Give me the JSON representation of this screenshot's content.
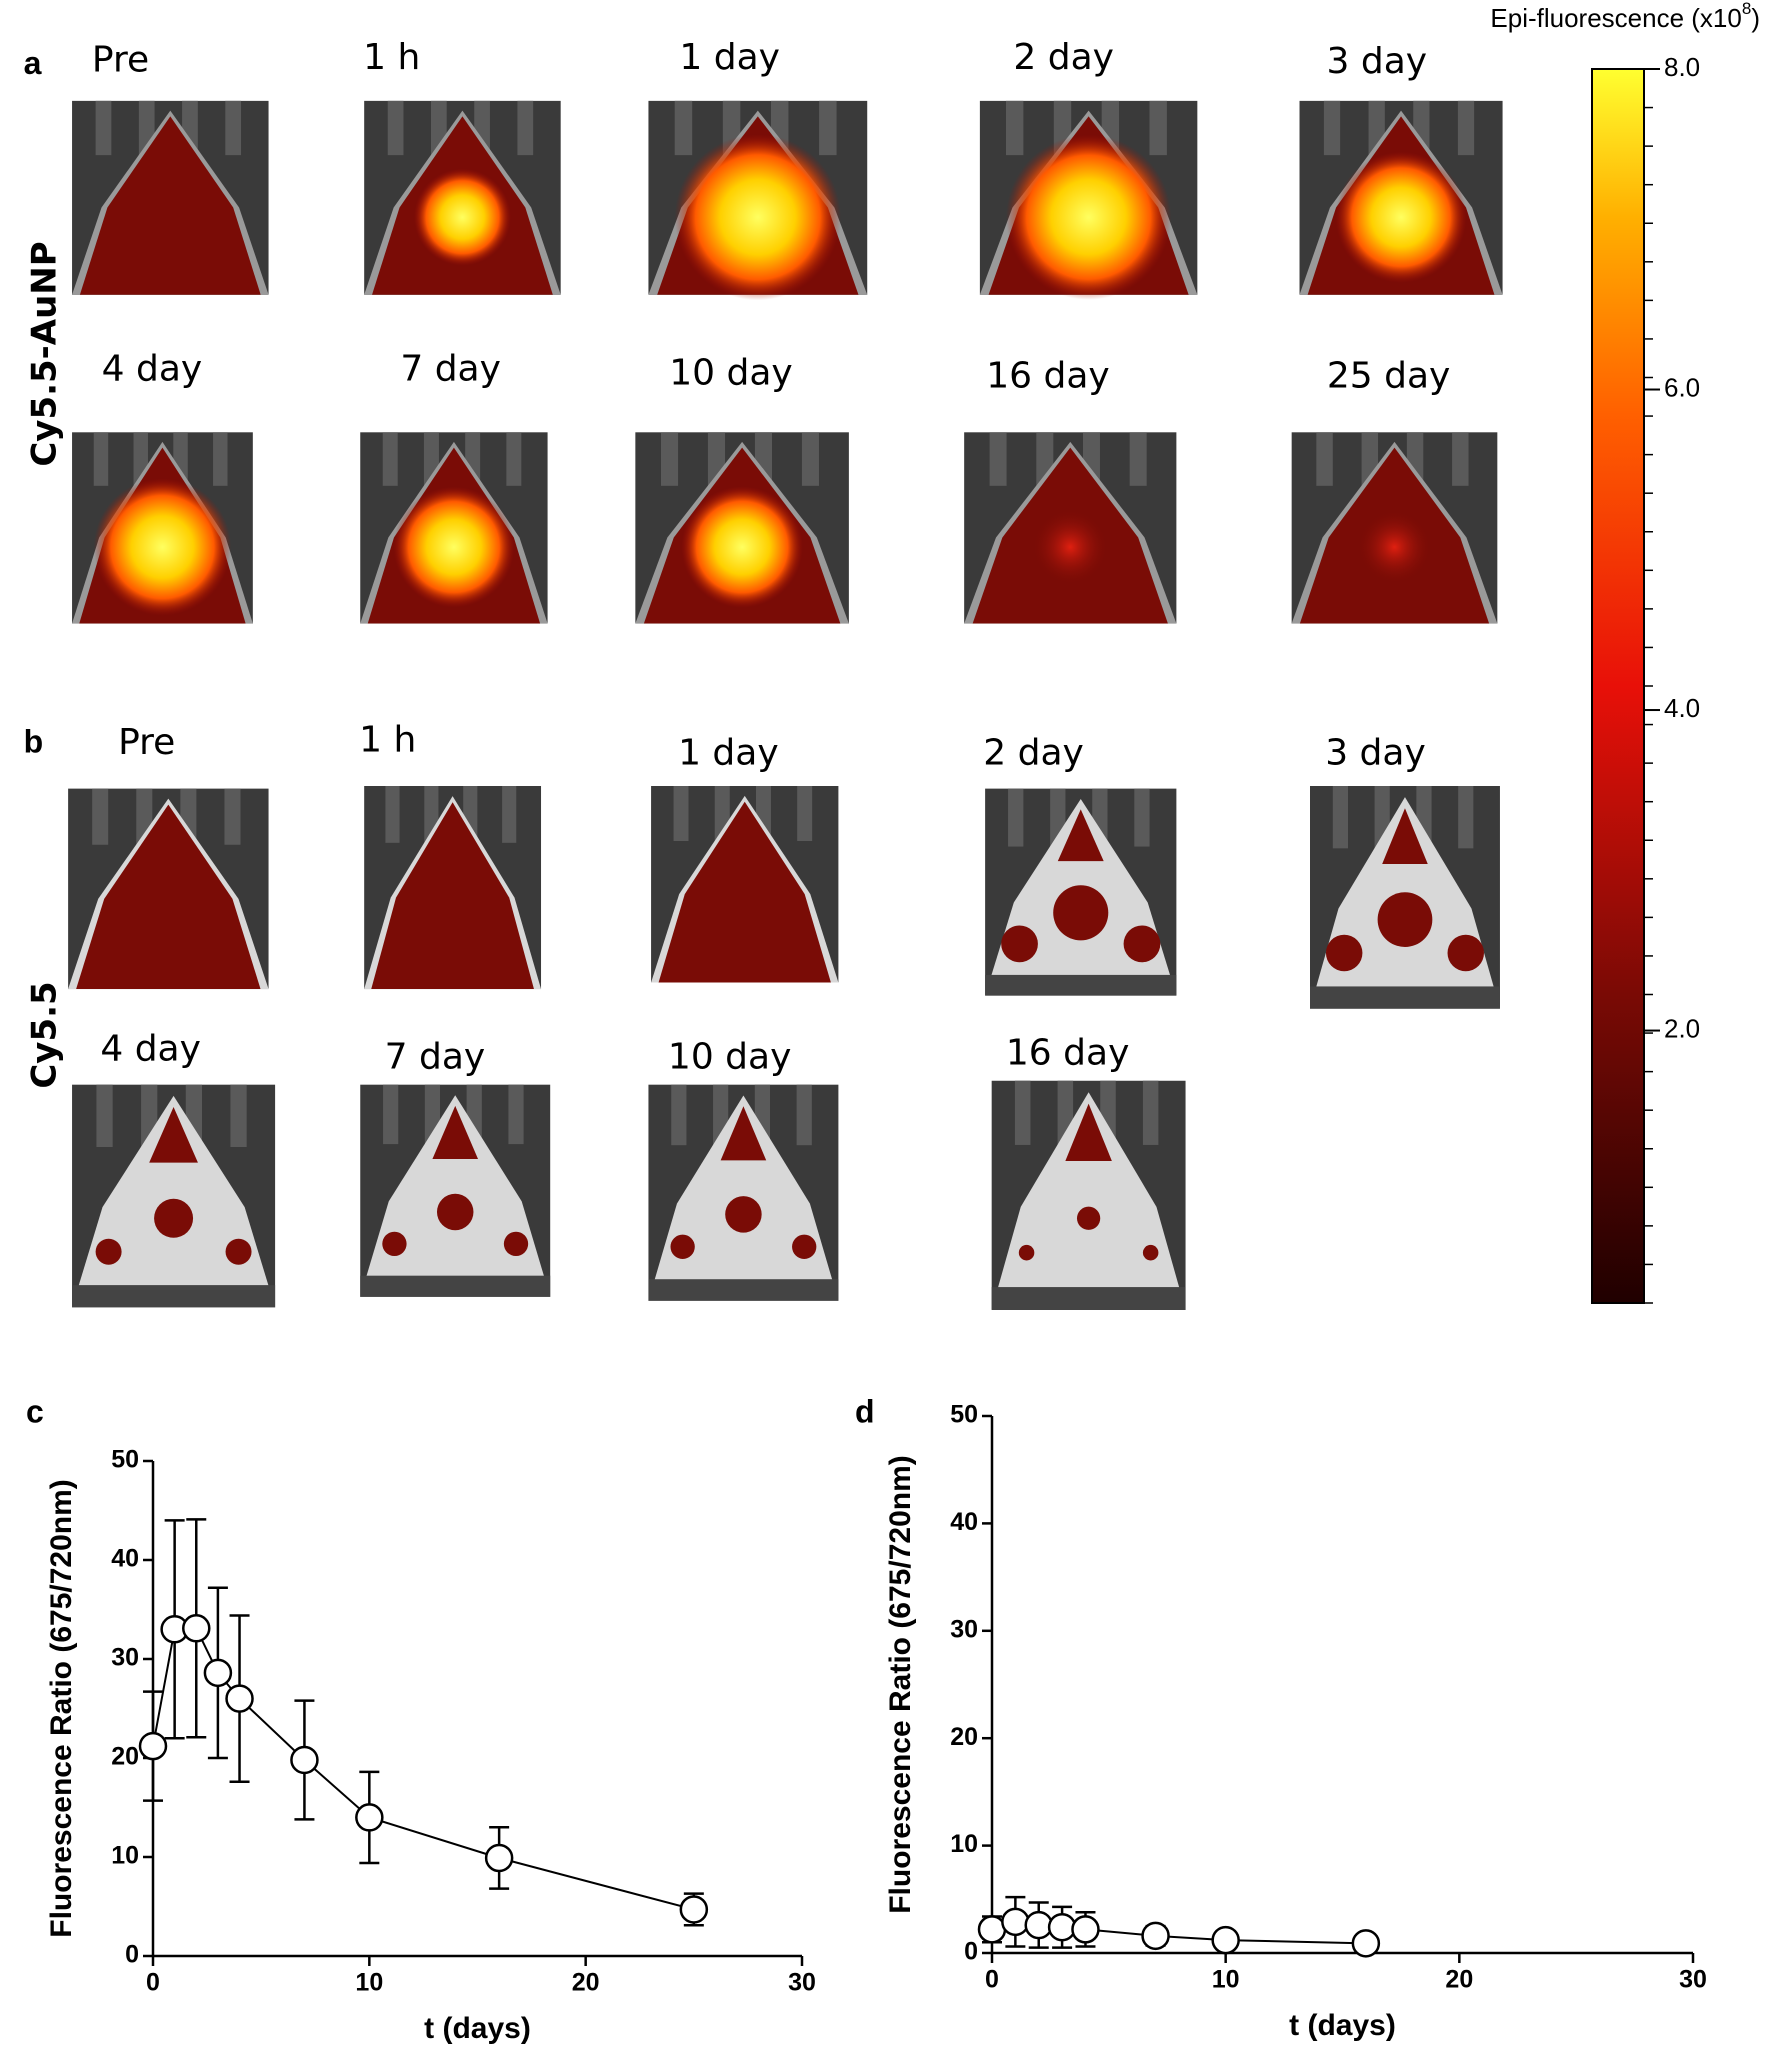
{
  "panels": [
    {
      "letter": "a",
      "group": "Cy5.5-AuNP",
      "timepoints": [
        "Pre",
        "1 h",
        "1 day",
        "2 day",
        "3 day",
        "4 day",
        "7 day",
        "10 day",
        "16 day",
        "25 day"
      ]
    },
    {
      "letter": "b",
      "group": "Cy5.5",
      "timepoints": [
        "Pre",
        "1 h",
        "1 day",
        "2 day",
        "3 day",
        "4 day",
        "7 day",
        "10 day",
        "16 day"
      ]
    }
  ],
  "colorbar": {
    "title_pre": "Epi-fluorescence (x10",
    "title_exp": "8",
    "title_post": ")",
    "lim": [
      0.3,
      8
    ],
    "ticks": [
      {
        "value": 2,
        "label": "2.0"
      },
      {
        "value": 4,
        "label": "4.0"
      },
      {
        "value": 6,
        "label": "6.0"
      },
      {
        "value": 8,
        "label": "8.0"
      }
    ]
  },
  "chart_data": [
    {
      "type": "line",
      "panel_label": "c",
      "x": [
        0,
        1,
        2,
        3,
        4,
        7,
        10,
        16,
        25
      ],
      "series": [
        {
          "color": "#000000",
          "values": [
            21.2,
            33,
            33.1,
            28.6,
            26,
            19.8,
            14,
            9.9,
            4.7
          ],
          "errors": [
            5.5,
            11,
            11,
            8.6,
            8.4,
            6,
            4.6,
            3.1,
            1.6
          ]
        }
      ],
      "xlim": [
        0,
        30
      ],
      "ylim": [
        0,
        50
      ],
      "xticks": [
        0,
        10,
        20,
        30
      ],
      "yticks": [
        0,
        10,
        20,
        30,
        40,
        50
      ],
      "xlabel": "t (days)",
      "ylabel": "Fluorescence Ratio (675/720nm)"
    },
    {
      "type": "line",
      "panel_label": "d",
      "x": [
        0,
        1,
        2,
        3,
        4,
        7,
        10,
        16
      ],
      "series": [
        {
          "color": "#000000",
          "values": [
            2.2,
            2.9,
            2.6,
            2.4,
            2.2,
            1.6,
            1.2,
            0.9
          ],
          "errors": [
            1.2,
            2.3,
            2.1,
            1.9,
            1.6,
            0.9,
            0.5,
            0.3
          ]
        }
      ],
      "xlim": [
        0,
        30
      ],
      "ylim": [
        0,
        50
      ],
      "xticks": [
        0,
        10,
        20,
        30
      ],
      "yticks": [
        0,
        10,
        20,
        30,
        40,
        50
      ],
      "xlabel": "t (days)",
      "ylabel": "Fluorescence Ratio (675/720nm)"
    }
  ]
}
